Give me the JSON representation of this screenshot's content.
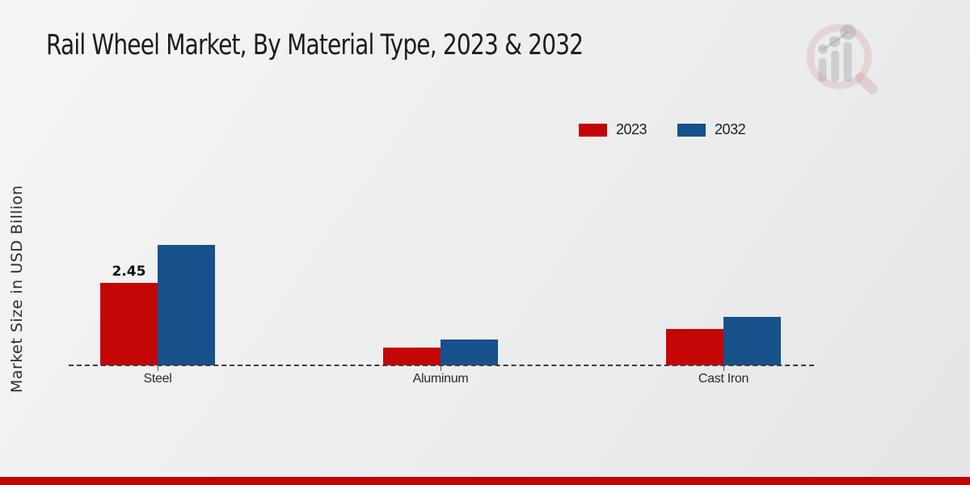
{
  "header": {
    "title": "Rail Wheel Market, By Material Type, 2023 & 2032"
  },
  "icons": {
    "watermark": "magnifying-glass-bar-chart-watermark"
  },
  "colors": {
    "series_2023": "#c40606",
    "series_2032": "#17518b",
    "footer_bar": "#bf0606",
    "baseline": "#3c3c3c"
  },
  "footer": {},
  "chart_data": {
    "type": "bar",
    "title": "Rail Wheel Market, By Material Type, 2023 & 2032",
    "xlabel": "",
    "ylabel": "Market Size in USD Billion",
    "categories": [
      "Steel",
      "Aluminum",
      "Cast Iron"
    ],
    "series": [
      {
        "name": "2023",
        "color": "#c40606",
        "values": [
          2.45,
          0.52,
          1.08
        ]
      },
      {
        "name": "2032",
        "color": "#17518b",
        "values": [
          3.58,
          0.78,
          1.45
        ]
      }
    ],
    "data_labels": [
      [
        "2.45",
        "",
        ""
      ],
      [
        "",
        "",
        ""
      ]
    ],
    "ylim": [
      0,
      4.5
    ],
    "grid": false,
    "axis_line_style": "dashed",
    "legend_position": "top-right"
  }
}
